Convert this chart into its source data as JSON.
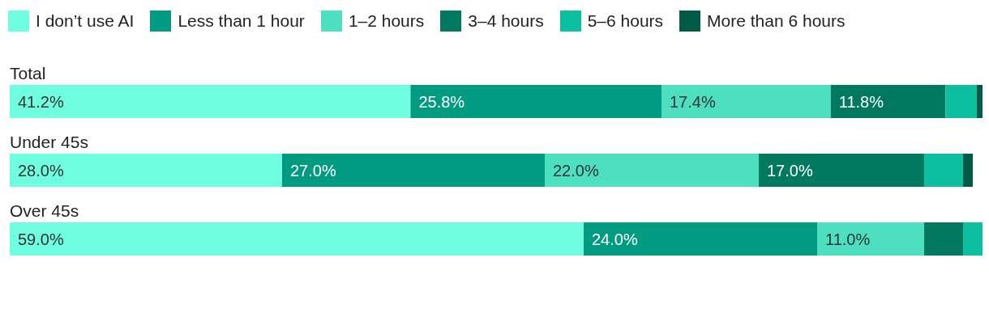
{
  "chart_data": {
    "type": "bar",
    "orientation": "horizontal",
    "stacked": true,
    "legend": "top left",
    "categories": [
      "Total",
      "Under 45s",
      "Over 45s"
    ],
    "series": [
      {
        "name": "I don’t use AI",
        "color": "#70fee0",
        "values": [
          41.2,
          28.0,
          59.0
        ],
        "value_labels": [
          "41.2%",
          "28.0%",
          "59.0%"
        ]
      },
      {
        "name": "Less than 1 hour",
        "color": "#009b80",
        "values": [
          25.8,
          27.0,
          24.0
        ],
        "value_labels": [
          "25.8%",
          "27.0%",
          "24.0%"
        ]
      },
      {
        "name": "1–2 hours",
        "color": "#4ce0c1",
        "values": [
          17.4,
          22.0,
          11.0
        ],
        "value_labels": [
          "17.4%",
          "22.0%",
          "11.0%"
        ]
      },
      {
        "name": "3–4 hours",
        "color": "#00795f",
        "values": [
          11.8,
          17.0,
          4.0
        ],
        "value_labels": [
          "11.8%",
          "17.0%",
          null
        ]
      },
      {
        "name": "5–6 hours",
        "color": "#0bbfa0",
        "values": [
          3.2,
          4.0,
          2.0
        ],
        "value_labels": [
          null,
          null,
          null
        ]
      },
      {
        "name": "More than 6 hours",
        "color": "#005c46",
        "values": [
          0.6,
          1.0,
          0
        ],
        "value_labels": [
          null,
          null,
          null
        ]
      }
    ]
  }
}
